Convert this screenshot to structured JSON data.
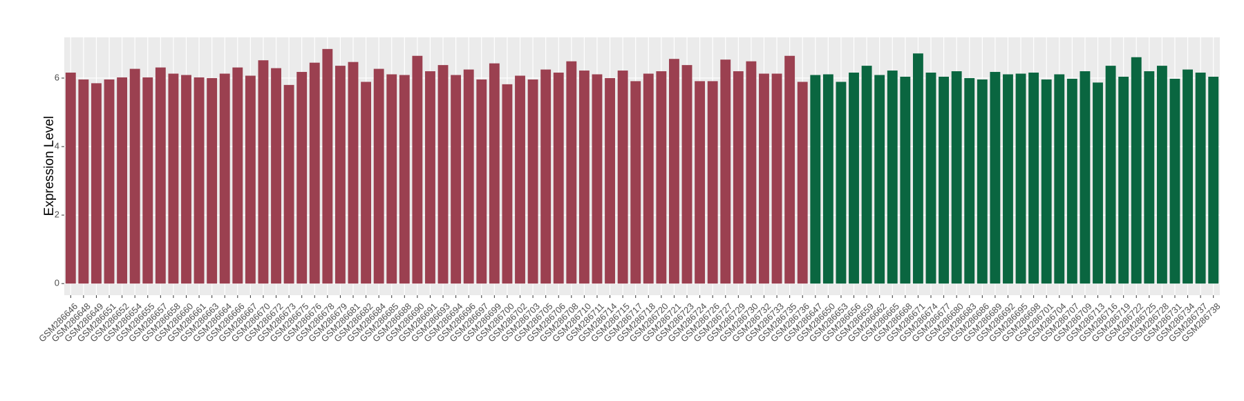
{
  "chart_data": {
    "type": "bar",
    "y_label": "Expression Level",
    "categories": [
      "GSM286646",
      "GSM286648",
      "GSM286649",
      "GSM286651",
      "GSM286652",
      "GSM286654",
      "GSM286655",
      "GSM286657",
      "GSM286658",
      "GSM286660",
      "GSM286661",
      "GSM286663",
      "GSM286664",
      "GSM286666",
      "GSM286667",
      "GSM286670",
      "GSM286672",
      "GSM286673",
      "GSM286675",
      "GSM286676",
      "GSM286678",
      "GSM286679",
      "GSM286681",
      "GSM286682",
      "GSM286684",
      "GSM286685",
      "GSM286688",
      "GSM286690",
      "GSM286691",
      "GSM286693",
      "GSM286694",
      "GSM286696",
      "GSM286697",
      "GSM286699",
      "GSM286700",
      "GSM286702",
      "GSM286703",
      "GSM286705",
      "GSM286706",
      "GSM286708",
      "GSM286710",
      "GSM286711",
      "GSM286714",
      "GSM286715",
      "GSM286717",
      "GSM286718",
      "GSM286720",
      "GSM286721",
      "GSM286723",
      "GSM286724",
      "GSM286726",
      "GSM286727",
      "GSM286729",
      "GSM286730",
      "GSM286732",
      "GSM286733",
      "GSM286735",
      "GSM286736",
      "GSM286647",
      "GSM286650",
      "GSM286653",
      "GSM286656",
      "GSM286659",
      "GSM286662",
      "GSM286665",
      "GSM286668",
      "GSM286671",
      "GSM286674",
      "GSM286677",
      "GSM286680",
      "GSM286683",
      "GSM286686",
      "GSM286689",
      "GSM286692",
      "GSM286695",
      "GSM286698",
      "GSM286701",
      "GSM286704",
      "GSM286707",
      "GSM286709",
      "GSM286713",
      "GSM286716",
      "GSM286719",
      "GSM286722",
      "GSM286725",
      "GSM286728",
      "GSM286731",
      "GSM286734",
      "GSM286737",
      "GSM286738"
    ],
    "values": [
      6.16,
      5.96,
      5.85,
      5.96,
      6.02,
      6.27,
      6.02,
      6.31,
      6.13,
      6.09,
      6.02,
      6.0,
      6.13,
      6.31,
      6.07,
      6.52,
      6.29,
      5.8,
      6.18,
      6.45,
      6.85,
      6.36,
      6.47,
      5.89,
      6.27,
      6.11,
      6.09,
      6.65,
      6.2,
      6.38,
      6.09,
      6.25,
      5.96,
      6.43,
      5.82,
      6.07,
      5.96,
      6.25,
      6.16,
      6.49,
      6.22,
      6.11,
      6.0,
      6.22,
      5.91,
      6.13,
      6.2,
      6.56,
      6.38,
      5.91,
      5.91,
      6.54,
      6.2,
      6.49,
      6.13,
      6.13,
      6.65,
      5.89,
      6.09,
      6.11,
      5.89,
      6.16,
      6.36,
      6.09,
      6.22,
      6.04,
      6.72,
      6.16,
      6.04,
      6.2,
      6.0,
      5.96,
      6.18,
      6.11,
      6.13,
      6.16,
      5.96,
      6.11,
      5.98,
      6.2,
      5.87,
      6.36,
      6.04,
      6.61,
      6.2,
      6.36,
      5.98,
      6.25,
      6.16,
      6.04
    ],
    "colors": [
      "#9b4050",
      "#9b4050",
      "#9b4050",
      "#9b4050",
      "#9b4050",
      "#9b4050",
      "#9b4050",
      "#9b4050",
      "#9b4050",
      "#9b4050",
      "#9b4050",
      "#9b4050",
      "#9b4050",
      "#9b4050",
      "#9b4050",
      "#9b4050",
      "#9b4050",
      "#9b4050",
      "#9b4050",
      "#9b4050",
      "#9b4050",
      "#9b4050",
      "#9b4050",
      "#9b4050",
      "#9b4050",
      "#9b4050",
      "#9b4050",
      "#9b4050",
      "#9b4050",
      "#9b4050",
      "#9b4050",
      "#9b4050",
      "#9b4050",
      "#9b4050",
      "#9b4050",
      "#9b4050",
      "#9b4050",
      "#9b4050",
      "#9b4050",
      "#9b4050",
      "#9b4050",
      "#9b4050",
      "#9b4050",
      "#9b4050",
      "#9b4050",
      "#9b4050",
      "#9b4050",
      "#9b4050",
      "#9b4050",
      "#9b4050",
      "#9b4050",
      "#9b4050",
      "#9b4050",
      "#9b4050",
      "#9b4050",
      "#9b4050",
      "#9b4050",
      "#9b4050",
      "#0a6640",
      "#0a6640",
      "#0a6640",
      "#0a6640",
      "#0a6640",
      "#0a6640",
      "#0a6640",
      "#0a6640",
      "#0a6640",
      "#0a6640",
      "#0a6640",
      "#0a6640",
      "#0a6640",
      "#0a6640",
      "#0a6640",
      "#0a6640",
      "#0a6640",
      "#0a6640",
      "#0a6640",
      "#0a6640",
      "#0a6640",
      "#0a6640",
      "#0a6640",
      "#0a6640",
      "#0a6640",
      "#0a6640",
      "#0a6640",
      "#0a6640",
      "#0a6640",
      "#0a6640",
      "#0a6640",
      "#0a6640"
    ],
    "ylim": [
      -0.34,
      7.19
    ],
    "yticks": [
      0,
      2,
      4,
      6
    ],
    "grid": true
  }
}
